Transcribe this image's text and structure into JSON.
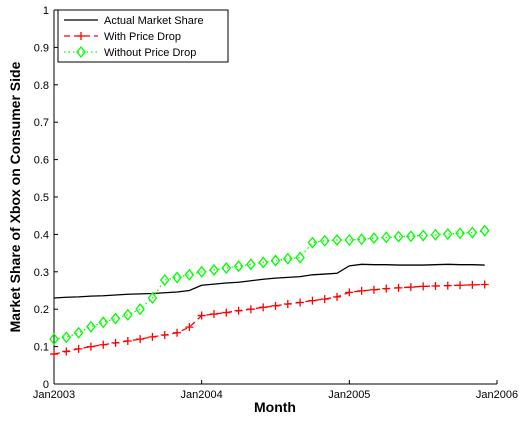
{
  "chart_data": {
    "type": "line",
    "x_label": "Month",
    "y_label": "Market Share of Xbox on Consumer Side",
    "x": [
      "2003-01",
      "2003-02",
      "2003-03",
      "2003-04",
      "2003-05",
      "2003-06",
      "2003-07",
      "2003-08",
      "2003-09",
      "2003-10",
      "2003-11",
      "2003-12",
      "2004-01",
      "2004-02",
      "2004-03",
      "2004-04",
      "2004-05",
      "2004-06",
      "2004-07",
      "2004-08",
      "2004-09",
      "2004-10",
      "2004-11",
      "2004-12",
      "2005-01",
      "2005-02",
      "2005-03",
      "2005-04",
      "2005-05",
      "2005-06",
      "2005-07",
      "2005-08",
      "2005-09",
      "2005-10",
      "2005-11",
      "2005-12"
    ],
    "series": [
      {
        "name": "Actual Market Share",
        "color": "#000000",
        "line": "solid",
        "marker": "none",
        "values": [
          0.23,
          0.232,
          0.233,
          0.235,
          0.236,
          0.238,
          0.24,
          0.241,
          0.242,
          0.244,
          0.246,
          0.25,
          0.264,
          0.267,
          0.27,
          0.272,
          0.276,
          0.28,
          0.283,
          0.285,
          0.287,
          0.292,
          0.294,
          0.296,
          0.316,
          0.32,
          0.319,
          0.319,
          0.318,
          0.318,
          0.318,
          0.319,
          0.32,
          0.319,
          0.319,
          0.318
        ]
      },
      {
        "name": "With Price Drop",
        "color": "#ff0000",
        "line": "dashed",
        "marker": "plus",
        "values": [
          0.08,
          0.087,
          0.094,
          0.1,
          0.105,
          0.11,
          0.115,
          0.12,
          0.126,
          0.131,
          0.137,
          0.152,
          0.183,
          0.187,
          0.191,
          0.196,
          0.2,
          0.205,
          0.209,
          0.214,
          0.218,
          0.223,
          0.227,
          0.233,
          0.245,
          0.249,
          0.252,
          0.255,
          0.257,
          0.259,
          0.261,
          0.262,
          0.263,
          0.264,
          0.265,
          0.266
        ]
      },
      {
        "name": "Without Price Drop",
        "color": "#00ff00",
        "line": "dotted",
        "marker": "diamond",
        "values": [
          0.12,
          0.125,
          0.137,
          0.153,
          0.165,
          0.175,
          0.185,
          0.2,
          0.23,
          0.278,
          0.285,
          0.292,
          0.3,
          0.305,
          0.31,
          0.315,
          0.32,
          0.325,
          0.33,
          0.335,
          0.338,
          0.378,
          0.383,
          0.385,
          0.385,
          0.387,
          0.39,
          0.392,
          0.394,
          0.395,
          0.397,
          0.399,
          0.401,
          0.403,
          0.405,
          0.41
        ]
      }
    ],
    "xlim": [
      "2003-01",
      "2006-01"
    ],
    "xticks": [
      {
        "value": "2003-01",
        "label": "Jan2003"
      },
      {
        "value": "2004-01",
        "label": "Jan2004"
      },
      {
        "value": "2005-01",
        "label": "Jan2005"
      },
      {
        "value": "2006-01",
        "label": "Jan2006"
      }
    ],
    "ylim": [
      0,
      1
    ],
    "yticks": [
      0,
      0.1,
      0.2,
      0.3,
      0.4,
      0.5,
      0.6,
      0.7,
      0.8,
      0.9,
      1
    ],
    "grid": false,
    "legend": "upper left"
  }
}
